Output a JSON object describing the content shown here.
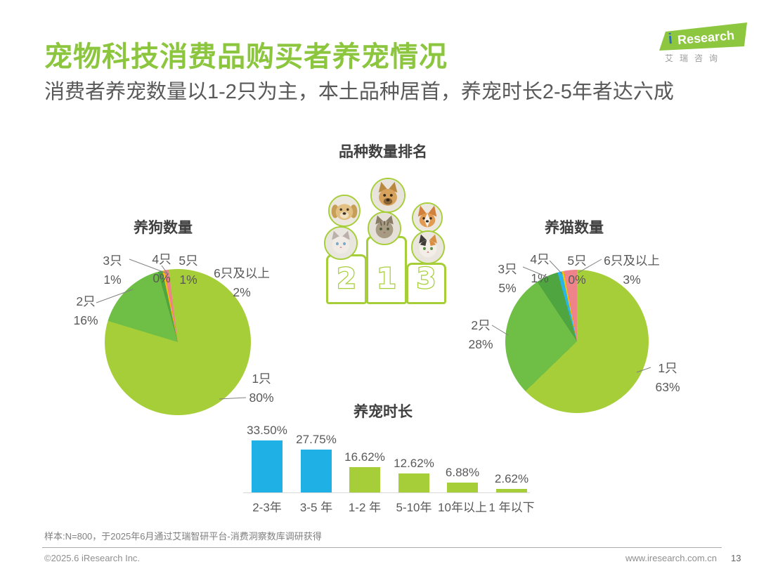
{
  "header": {
    "title": "宠物科技消费品购买者养宠情况",
    "subtitle": "消费者养宠数量以1-2只为主，本土品种居首，养宠时长2-5年者达六成"
  },
  "logo": {
    "i": "i",
    "brand": "Research",
    "brand_cn": "艾瑞咨询"
  },
  "ranking": {
    "title": "品种数量排名",
    "ranks": [
      "2",
      "1",
      "3"
    ],
    "animal_photos": [
      "golden-retriever-dog",
      "rural-dog",
      "corgi-dog",
      "ragdoll-cat",
      "tabby-cat",
      "calico-cat"
    ]
  },
  "colors": {
    "accent_green": "#8CC63F",
    "pie_light_green": "#A6CE39",
    "pie_mid_green": "#6FBE45",
    "pie_dark_green": "#4FA53F",
    "pie_yellow": "#F2C500",
    "pie_pink": "#EE838A",
    "pie_cyan": "#29B5E8",
    "bar_blue": "#1FB0E6"
  },
  "chart_data": [
    {
      "type": "pie",
      "title": "养狗数量",
      "labels": [
        "1只",
        "2只",
        "3只",
        "4只",
        "5只",
        "6只及以上"
      ],
      "values": [
        80,
        16,
        1,
        0,
        1,
        2
      ],
      "value_labels": [
        "80%",
        "16%",
        "1%",
        "0%",
        "1%",
        "2%"
      ],
      "colors": [
        "#A6CE39",
        "#6FBE45",
        "#4FA53F",
        "#F2C500",
        "#EE838A",
        "#A6CE39"
      ],
      "unit": "%"
    },
    {
      "type": "pie",
      "title": "养猫数量",
      "labels": [
        "1只",
        "2只",
        "3只",
        "4只",
        "5只",
        "6只及以上"
      ],
      "values": [
        63,
        28,
        5,
        1,
        0,
        3
      ],
      "value_labels": [
        "63%",
        "28%",
        "5%",
        "1%",
        "0%",
        "3%"
      ],
      "colors": [
        "#A6CE39",
        "#6FBE45",
        "#4FA53F",
        "#29B5E8",
        "#F2C500",
        "#EE838A"
      ],
      "unit": "%"
    },
    {
      "type": "bar",
      "title": "养宠时长",
      "categories": [
        "2-3年",
        "3-5 年",
        "1-2 年",
        "5-10年",
        "10年以上",
        "1 年以下"
      ],
      "values": [
        33.5,
        27.75,
        16.62,
        12.62,
        6.88,
        2.62
      ],
      "value_labels": [
        "33.50%",
        "27.75%",
        "16.62%",
        "12.62%",
        "6.88%",
        "2.62%"
      ],
      "bar_colors": [
        "#1FB0E6",
        "#1FB0E6",
        "#A6CE39",
        "#A6CE39",
        "#A6CE39",
        "#A6CE39"
      ],
      "ylim": [
        0,
        35
      ]
    }
  ],
  "footer": {
    "note": "样本:N=800，于2025年6月通过艾瑞智研平台-消费洞察数库调研获得",
    "copyright": "©2025.6 iResearch Inc.",
    "website": "www.iresearch.com.cn",
    "page_number": "13"
  }
}
